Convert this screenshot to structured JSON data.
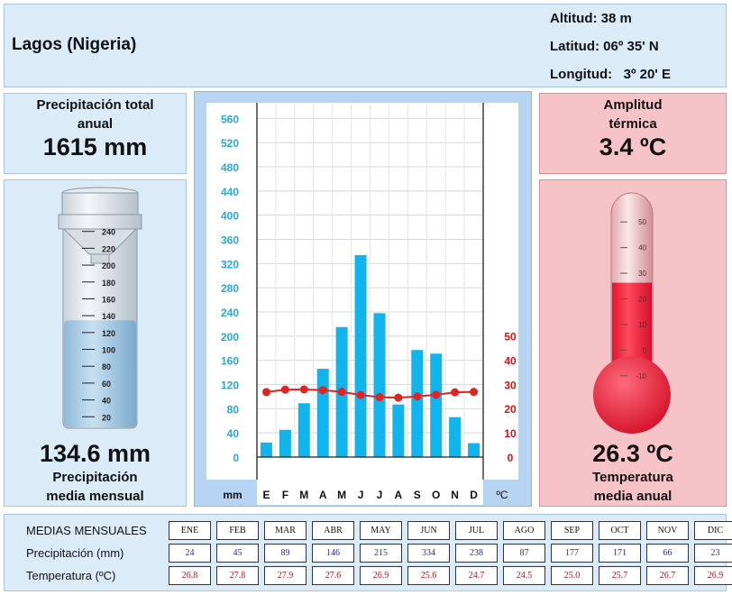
{
  "location": {
    "name": "Lagos (Nigeria)",
    "altitud": "Altitud: 38 m",
    "latitud": "Latitud: 06º 35' N",
    "longitud": "Longitud:   3º 20' E"
  },
  "precipitation_total": {
    "label_line1": "Precipitación total",
    "label_line2": "anual",
    "value": "1615 mm"
  },
  "precipitation_mean": {
    "value": "134.6 mm",
    "label_line1": "Precipitación",
    "label_line2": "media mensual"
  },
  "thermal_range": {
    "label_line1": "Amplitud",
    "label_line2": "térmica",
    "value": "3.4 ºC"
  },
  "temperature_mean": {
    "value": "26.3 ºC",
    "label_line1": "Temperatura",
    "label_line2": "media anual"
  },
  "gauge": {
    "scale": [
      "240",
      "220",
      "200",
      "180",
      "160",
      "140",
      "120",
      "100",
      "80",
      "60",
      "40",
      "20"
    ],
    "level": 134.6,
    "max": 260
  },
  "thermometer": {
    "scale": [
      "50",
      "40",
      "30",
      "20",
      "10",
      "0",
      "-10"
    ],
    "level": 26.3,
    "min": -15,
    "max": 55
  },
  "chart_data": {
    "type": "bar+line",
    "categories": [
      "E",
      "F",
      "M",
      "A",
      "M",
      "J",
      "J",
      "A",
      "S",
      "O",
      "N",
      "D"
    ],
    "series": [
      {
        "axis": "left",
        "type": "bar",
        "values": [
          24,
          45,
          89,
          146,
          215,
          334,
          238,
          87,
          177,
          171,
          66,
          23
        ]
      },
      {
        "axis": "right",
        "type": "line",
        "values": [
          26.8,
          27.8,
          27.9,
          27.6,
          26.9,
          25.6,
          24.7,
          24.5,
          25.0,
          25.7,
          26.7,
          26.9
        ]
      }
    ],
    "ylabel_left": "mm",
    "ylabel_right": "ºC",
    "yticks_left": [
      "0",
      "40",
      "80",
      "120",
      "160",
      "200",
      "240",
      "280",
      "320",
      "360",
      "400",
      "440",
      "480",
      "520",
      "560"
    ],
    "yticks_right": [
      "0",
      "10",
      "20",
      "30",
      "40",
      "50"
    ],
    "ylim_left": [
      0,
      580
    ],
    "ylim_right": [
      0,
      50
    ],
    "colors": {
      "bar": "#12b4ee",
      "line": "#e32222",
      "left_axis": "#24a9e1",
      "right_axis": "#dd1111"
    }
  },
  "table": {
    "header_label": "MEDIAS MENSUALES",
    "precip_label": "Precipitación (mm)",
    "temp_label": "Temperatura (ºC)",
    "months": [
      "ENE",
      "FEB",
      "MAR",
      "ABR",
      "MAY",
      "JUN",
      "JUL",
      "AGO",
      "SEP",
      "OCT",
      "NOV",
      "DIC"
    ],
    "precip": [
      "24",
      "45",
      "89",
      "146",
      "215",
      "334",
      "238",
      "87",
      "177",
      "171",
      "66",
      "23"
    ],
    "temp": [
      "26.8",
      "27.8",
      "27.9",
      "27.6",
      "26.9",
      "25.6",
      "24.7",
      "24.5",
      "25.0",
      "25.7",
      "26.7",
      "26.9"
    ]
  }
}
